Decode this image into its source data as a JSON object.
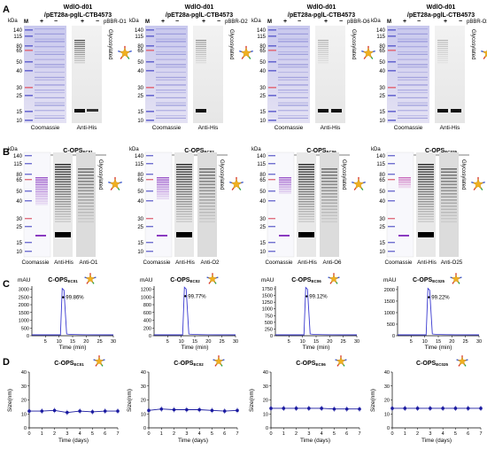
{
  "panel_letters": [
    "A",
    "B",
    "C",
    "D"
  ],
  "kda_label": "kDa",
  "marker_labels_A": [
    "140",
    "115",
    "80",
    "65",
    "50",
    "40",
    "30",
    "25",
    "15",
    "10"
  ],
  "marker_labels_B1": [
    "140",
    "115",
    "80",
    "65",
    "50",
    "40",
    "30",
    "25",
    "15",
    "10"
  ],
  "marker_labels_B4": [
    "140",
    "115",
    "80",
    "65",
    "50",
    "40",
    "30",
    "25",
    "15",
    "10"
  ],
  "lane_M": "M",
  "plus": "+",
  "minus": "−",
  "glycosylated": "Glycosylated",
  "coomassie": "Coomassie",
  "anti_his": "Anti-His",
  "construct_line1": "WdlO-d01",
  "construct_line2": "/pET28a-pglL-CTB4573",
  "panels_A": [
    {
      "plasmid": "pBBR-O1"
    },
    {
      "plasmid": "pBBR-O2"
    },
    {
      "plasmid": "pBBR-O6"
    },
    {
      "plasmid": "pBBR-O25"
    }
  ],
  "panels_B": [
    {
      "title_main": "C-OPS",
      "title_sub": "EC01",
      "lane3": "Anti-O1"
    },
    {
      "title_main": "C-OPS",
      "title_sub": "EC02",
      "lane3": "Anti-O2"
    },
    {
      "title_main": "C-OPS",
      "title_sub": "EC06",
      "lane3": "Anti-O6"
    },
    {
      "title_main": "C-OPS",
      "title_sub": "EC025",
      "lane3": "Anti-O25"
    }
  ],
  "panel_C": {
    "y_label": "mAU",
    "x_label": "Time (min)",
    "plots": [
      {
        "title_main": "C-OPS",
        "title_sub": "EC01",
        "purity": "99.86%",
        "yticks": [
          "0",
          "500",
          "1000",
          "1500",
          "2000",
          "2500",
          "3000"
        ],
        "ymax": 3200,
        "peak_x": 11.5,
        "peak_y": 3050
      },
      {
        "title_main": "C-OPS",
        "title_sub": "EC02",
        "purity": "99.77%",
        "yticks": [
          "0",
          "200",
          "400",
          "600",
          "800",
          "1000",
          "1200"
        ],
        "ymax": 1280,
        "peak_x": 11.5,
        "peak_y": 1250
      },
      {
        "title_main": "C-OPS",
        "title_sub": "EC06",
        "purity": "99.12%",
        "yticks": [
          "0",
          "250",
          "500",
          "750",
          "1000",
          "1250",
          "1500",
          "1750"
        ],
        "ymax": 1850,
        "peak_x": 11.5,
        "peak_y": 1800
      },
      {
        "title_main": "C-OPS",
        "title_sub": "EC025",
        "purity": "99.22%",
        "yticks": [
          "0",
          "500",
          "1000",
          "1500",
          "2000"
        ],
        "ymax": 2150,
        "peak_x": 11.5,
        "peak_y": 2050
      }
    ],
    "xticks": [
      "5",
      "10",
      "15",
      "20",
      "25",
      "30"
    ],
    "xmin": 0,
    "xmax": 30
  },
  "panel_D": {
    "y_label": "Size(nm)",
    "x_label": "Time (days)",
    "yticks": [
      "0",
      "10",
      "20",
      "30",
      "40"
    ],
    "xticks": [
      "0",
      "1",
      "2",
      "3",
      "4",
      "5",
      "6",
      "7"
    ],
    "ymax": 40,
    "plots": [
      {
        "title_main": "C-OPS",
        "title_sub": "EC01",
        "values": [
          12,
          12,
          12.5,
          11,
          12,
          11.5,
          12,
          12
        ]
      },
      {
        "title_main": "C-OPS",
        "title_sub": "EC02",
        "values": [
          12.5,
          13.5,
          13,
          13,
          13,
          12.5,
          12,
          12.5
        ]
      },
      {
        "title_main": "C-OPS",
        "title_sub": "EC06",
        "values": [
          14,
          14,
          14,
          14,
          14,
          13.5,
          13.5,
          13.5
        ]
      },
      {
        "title_main": "C-OPS",
        "title_sub": "EC025",
        "values": [
          14,
          14,
          14,
          14,
          14,
          14,
          14,
          14
        ]
      }
    ]
  },
  "colors": {
    "line": "#1a1aa0",
    "accent_blue": "#3a3ad0",
    "gold": "#f0b020",
    "red": "#d83020",
    "green": "#20a040",
    "blue_sugar": "#3050d0"
  }
}
